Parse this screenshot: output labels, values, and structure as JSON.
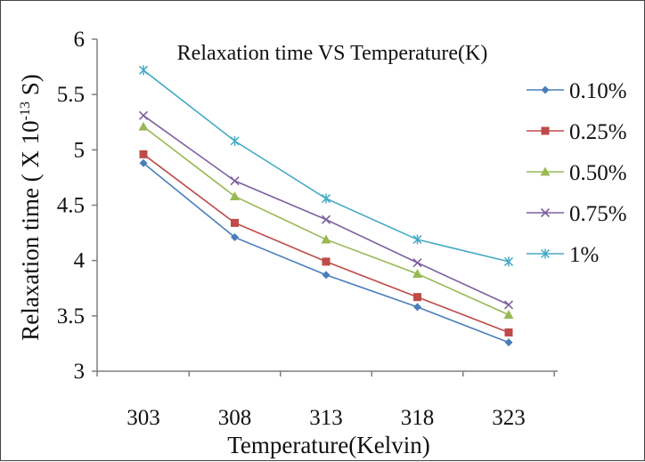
{
  "chart_data": {
    "type": "line",
    "title": "Relaxation time VS Temperature(K)",
    "xlabel": "Temperature(Kelvin)",
    "ylabel_main": "Relaxation time ( X 10",
    "ylabel_exp": "-13",
    "ylabel_tail": " S)",
    "categories": [
      "303",
      "308",
      "313",
      "318",
      "323"
    ],
    "ylim": [
      3,
      6
    ],
    "yticks": [
      "3",
      "3.5",
      "4",
      "4.5",
      "5",
      "5.5",
      "6"
    ],
    "grid": false,
    "legend_position": "right",
    "series": [
      {
        "name": "0.10%",
        "color": "#4a7ebb",
        "marker": "diamond",
        "values": [
          4.88,
          4.21,
          3.87,
          3.58,
          3.26
        ]
      },
      {
        "name": "0.25%",
        "color": "#be4b48",
        "marker": "square",
        "values": [
          4.96,
          4.34,
          3.99,
          3.67,
          3.35
        ]
      },
      {
        "name": "0.50%",
        "color": "#98b954",
        "marker": "triangle",
        "values": [
          5.21,
          4.58,
          4.19,
          3.88,
          3.51
        ]
      },
      {
        "name": "0.75%",
        "color": "#7d60a0",
        "marker": "x",
        "values": [
          5.31,
          4.72,
          4.37,
          3.98,
          3.6
        ]
      },
      {
        "name": "1%",
        "color": "#46aac5",
        "marker": "star",
        "values": [
          5.72,
          5.08,
          4.56,
          4.19,
          3.99
        ]
      }
    ]
  }
}
